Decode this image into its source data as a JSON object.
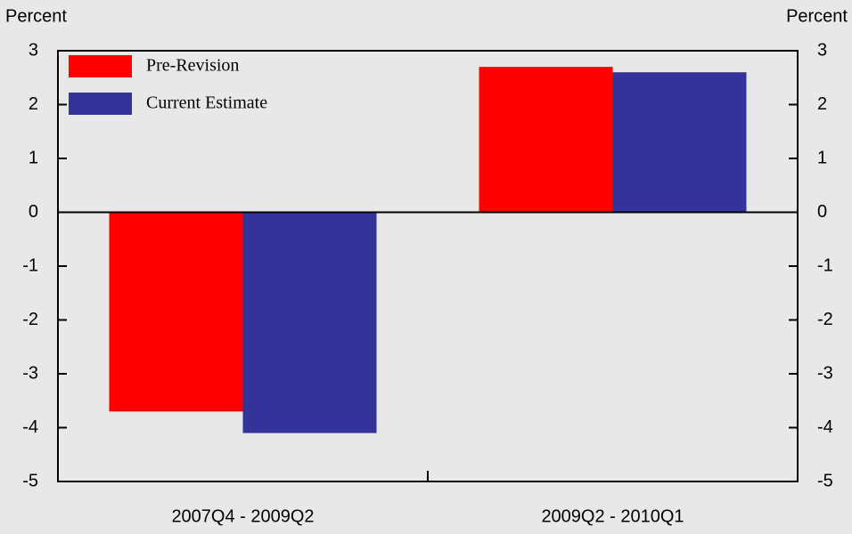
{
  "chart_data": {
    "type": "bar",
    "y_label": "Percent",
    "y2_label": "Percent",
    "categories": [
      "2007Q4 - 2009Q2",
      "2009Q2 - 2010Q1"
    ],
    "series": [
      {
        "name": "Pre-Revision",
        "color": "#ff0000",
        "values": [
          -3.7,
          2.7
        ]
      },
      {
        "name": "Current Estimate",
        "color": "#333399",
        "values": [
          -4.1,
          2.6
        ]
      }
    ],
    "ylim": [
      -5,
      3
    ],
    "yticks": [
      -5,
      -4,
      -3,
      -2,
      -1,
      0,
      1,
      2,
      3
    ],
    "y2lim": [
      -5,
      3
    ],
    "y2ticks": [
      -5,
      -4,
      -3,
      -2,
      -1,
      0,
      1,
      2,
      3
    ],
    "legend": "upper-left"
  }
}
